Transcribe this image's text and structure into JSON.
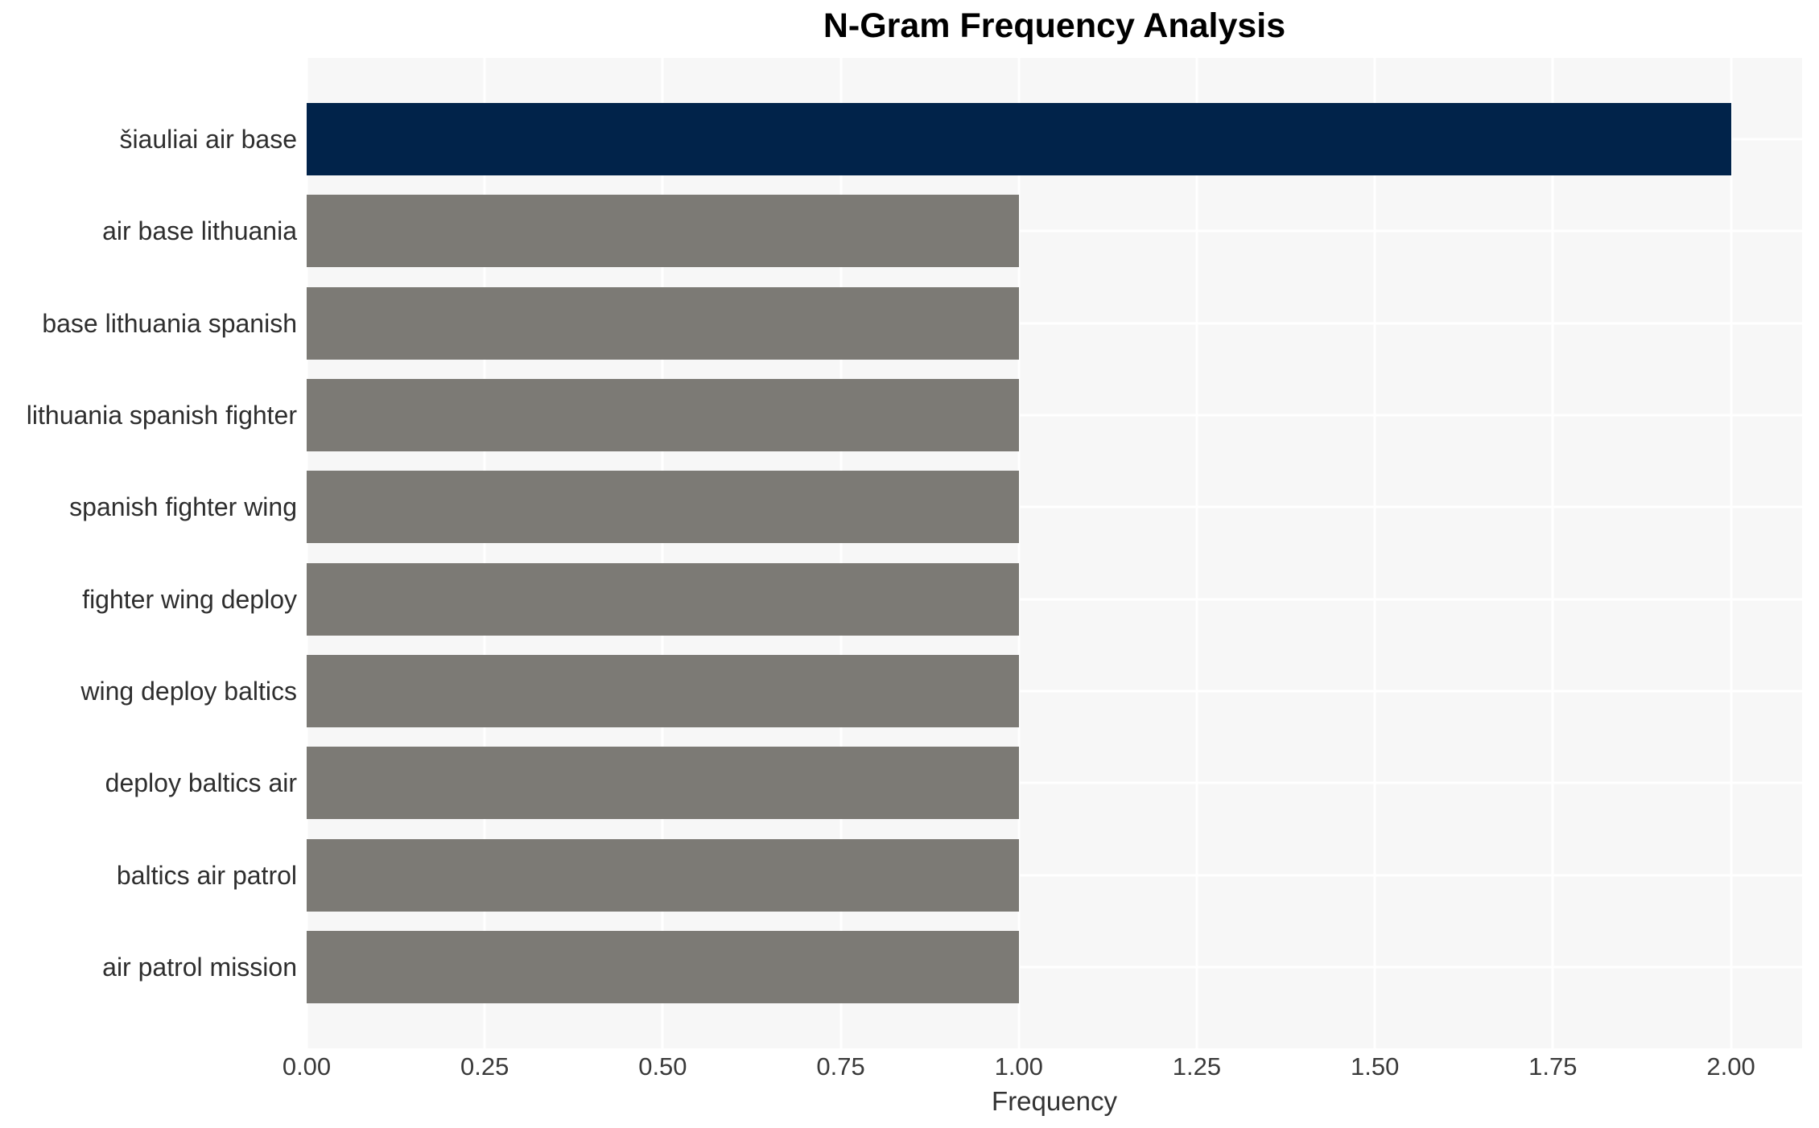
{
  "page": {
    "background": "#ffffff"
  },
  "chart_data": {
    "type": "bar",
    "orientation": "horizontal",
    "title": "N-Gram Frequency Analysis",
    "xlabel": "Frequency",
    "ylabel": "",
    "categories": [
      "šiauliai air base",
      "air base lithuania",
      "base lithuania spanish",
      "lithuania spanish fighter",
      "spanish fighter wing",
      "fighter wing deploy",
      "wing deploy baltics",
      "deploy baltics air",
      "baltics air patrol",
      "air patrol mission"
    ],
    "values": [
      2,
      1,
      1,
      1,
      1,
      1,
      1,
      1,
      1,
      1
    ],
    "bar_colors": [
      "#01234a",
      "#7c7a75",
      "#7c7a75",
      "#7c7a75",
      "#7c7a75",
      "#7c7a75",
      "#7c7a75",
      "#7c7a75",
      "#7c7a75",
      "#7c7a75"
    ],
    "highlight_color": "#01234a",
    "base_color": "#7c7a75",
    "xlim": [
      0,
      2.1
    ],
    "xticks": [
      0,
      0.25,
      0.5,
      0.75,
      1,
      1.25,
      1.5,
      1.75,
      2
    ],
    "xtick_labels": [
      "0.00",
      "0.25",
      "0.50",
      "0.75",
      "1.00",
      "1.25",
      "1.50",
      "1.75",
      "2.00"
    ],
    "grid": true,
    "grid_color": "#ffffff",
    "plot_background": "#f7f7f7",
    "legend": null
  }
}
